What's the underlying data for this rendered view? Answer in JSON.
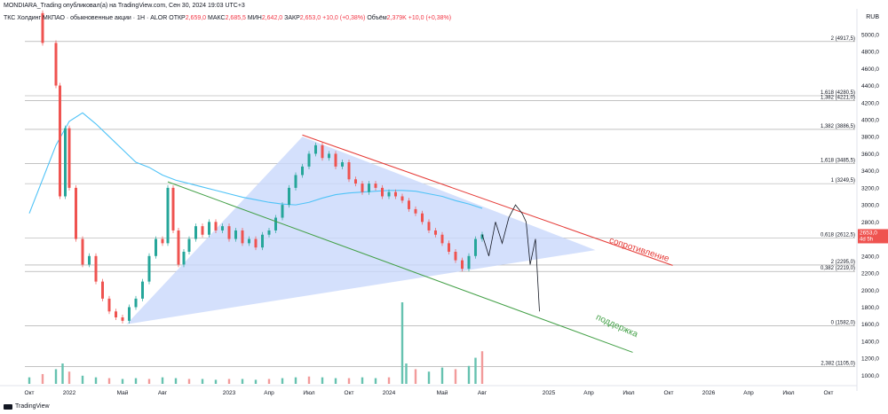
{
  "header": {
    "publisher": "MONDIARA_Trading опубликовал(а) на TradingView.com, Сен 30, 2024 19:03 UTC+3"
  },
  "symbol_line": {
    "name": "ТКС Холдинг МКПАО · обыкновенные акции · 1Н · ALOR",
    "open_label": "ОТКР",
    "open": "2,659,0",
    "high_label": "МАКС",
    "high": "2,685,5",
    "low_label": "МИН",
    "low": "2,642,0",
    "close_label": "ЗАКР",
    "close": "2,653,0",
    "change": "+10,0 (+0,38%)",
    "volume_label": "Объём",
    "volume": "2,379K",
    "volume_change": "+10,0 (+0,38%)"
  },
  "currency": "RUB",
  "footer": {
    "brand": "TradingView"
  },
  "colors": {
    "up": "#26a69a",
    "down": "#ef5350",
    "ma": "#4fc3f7",
    "triangle": "#c9d8fb",
    "resistance": "#e53935",
    "support": "#43a047",
    "volume_green": "#66c2b0",
    "volume_red": "#f29b9b"
  },
  "chart_data": {
    "type": "line",
    "y_axis": {
      "min": 900,
      "max": 5300,
      "ticks": [
        1000,
        1200,
        1400,
        1600,
        1800,
        2000,
        2200,
        2400,
        2600,
        2800,
        3000,
        3200,
        3400,
        3600,
        3800,
        4000,
        4200,
        4400,
        4600,
        4800,
        5000
      ],
      "tick_labels": [
        "1000,0",
        "1200,0",
        "1400,0",
        "1600,0",
        "1800,0",
        "2000,0",
        "2200,0",
        "2400,0",
        "2600,0",
        "2800,0",
        "3000,0",
        "3200,0",
        "3400,0",
        "3600,0",
        "3800,0",
        "4000,0",
        "4200,0",
        "4400,0",
        "4600,0",
        "4800,0",
        "5000,0"
      ]
    },
    "x_axis": {
      "ticks": [
        "Окт",
        "2022",
        "Май",
        "Авг",
        "2023",
        "Апр",
        "Июл",
        "Окт",
        "2024",
        "Май",
        "Авг",
        "2025",
        "Апр",
        "Июл",
        "Окт",
        "2026",
        "Апр",
        "Июл",
        "Окт",
        "2027",
        "Апр"
      ],
      "tick_months": [
        0,
        3,
        7,
        10,
        15,
        18,
        21,
        24,
        27,
        31,
        34,
        39,
        42,
        45,
        48,
        51,
        54,
        57,
        60,
        63,
        66
      ]
    },
    "last_price": {
      "value": 2653.0,
      "label": "2653,0",
      "sublabel": "4d 5h"
    },
    "fib_levels": [
      {
        "label": "2 (4917,5)",
        "value": 4917.5
      },
      {
        "label": "1,618 (4280,5)",
        "value": 4280.5
      },
      {
        "label": "1,382 (4221,0)",
        "value": 4221.0
      },
      {
        "label": "1,382 (3886,5)",
        "value": 3886.5
      },
      {
        "label": "1,618 (3485,5)",
        "value": 3485.5
      },
      {
        "label": "1 (3249,5)",
        "value": 3249.5
      },
      {
        "label": "0,618 (2612,5)",
        "value": 2612.5
      },
      {
        "label": "2 (2295,0)",
        "value": 2295.0
      },
      {
        "label": "0,382 (2219,0)",
        "value": 2219.0
      },
      {
        "label": "0 (1582,0)",
        "value": 1582.0
      },
      {
        "label": "2,382 (1105,0)",
        "value": 1105.0
      }
    ],
    "annotations": [
      {
        "text": "сопротивление",
        "kind": "resistance"
      },
      {
        "text": "поддержка",
        "kind": "support"
      }
    ],
    "ma_series": [
      [
        0,
        2900
      ],
      [
        1,
        3300
      ],
      [
        2,
        3700
      ],
      [
        3,
        3980
      ],
      [
        4,
        4080
      ],
      [
        5,
        3950
      ],
      [
        6,
        3800
      ],
      [
        7,
        3650
      ],
      [
        8,
        3500
      ],
      [
        9,
        3440
      ],
      [
        10,
        3350
      ],
      [
        11,
        3290
      ],
      [
        12,
        3250
      ],
      [
        13,
        3210
      ],
      [
        14,
        3170
      ],
      [
        15,
        3130
      ],
      [
        16,
        3090
      ],
      [
        17,
        3060
      ],
      [
        18,
        3030
      ],
      [
        19,
        3010
      ],
      [
        20,
        3000
      ],
      [
        21,
        3030
      ],
      [
        22,
        3080
      ],
      [
        23,
        3120
      ],
      [
        24,
        3140
      ],
      [
        25,
        3150
      ],
      [
        26,
        3160
      ],
      [
        27,
        3170
      ],
      [
        28,
        3170
      ],
      [
        29,
        3160
      ],
      [
        30,
        3130
      ],
      [
        31,
        3100
      ],
      [
        32,
        3050
      ],
      [
        33,
        3010
      ],
      [
        34,
        2960
      ]
    ],
    "price_series": [
      [
        0,
        5250
      ],
      [
        1,
        4900
      ],
      [
        2,
        4400
      ],
      [
        2.3,
        3100
      ],
      [
        2.7,
        3900
      ],
      [
        3,
        3200
      ],
      [
        3.5,
        2600
      ],
      [
        4,
        2300
      ],
      [
        4.5,
        2400
      ],
      [
        5,
        2100
      ],
      [
        5.5,
        1900
      ],
      [
        6,
        1750
      ],
      [
        6.5,
        1680
      ],
      [
        7,
        1640
      ],
      [
        7.5,
        1800
      ],
      [
        8,
        1900
      ],
      [
        8.5,
        2100
      ],
      [
        9,
        2400
      ],
      [
        9.5,
        2600
      ],
      [
        10,
        2550
      ],
      [
        10.4,
        3200
      ],
      [
        10.8,
        2700
      ],
      [
        11.2,
        2300
      ],
      [
        11.6,
        2450
      ],
      [
        12,
        2600
      ],
      [
        12.5,
        2750
      ],
      [
        13,
        2650
      ],
      [
        13.5,
        2800
      ],
      [
        14,
        2700
      ],
      [
        14.5,
        2750
      ],
      [
        15,
        2600
      ],
      [
        15.5,
        2700
      ],
      [
        16,
        2550
      ],
      [
        16.5,
        2600
      ],
      [
        17,
        2500
      ],
      [
        17.5,
        2650
      ],
      [
        18,
        2700
      ],
      [
        18.5,
        2850
      ],
      [
        19,
        3000
      ],
      [
        19.5,
        3200
      ],
      [
        20,
        3350
      ],
      [
        20.5,
        3450
      ],
      [
        21,
        3600
      ],
      [
        21.5,
        3700
      ],
      [
        22,
        3550
      ],
      [
        22.5,
        3600
      ],
      [
        23,
        3450
      ],
      [
        23.5,
        3500
      ],
      [
        24,
        3300
      ],
      [
        24.5,
        3250
      ],
      [
        25,
        3150
      ],
      [
        25.5,
        3250
      ],
      [
        26,
        3200
      ],
      [
        26.5,
        3100
      ],
      [
        27,
        3150
      ],
      [
        27.5,
        3100
      ],
      [
        28,
        3050
      ],
      [
        28.5,
        2950
      ],
      [
        29,
        2900
      ],
      [
        29.5,
        2800
      ],
      [
        30,
        2700
      ],
      [
        30.5,
        2650
      ],
      [
        31,
        2550
      ],
      [
        31.5,
        2450
      ],
      [
        32,
        2350
      ],
      [
        32.5,
        2250
      ],
      [
        33,
        2400
      ],
      [
        33.5,
        2600
      ],
      [
        34,
        2653
      ]
    ],
    "volumes": [
      [
        0,
        0.08
      ],
      [
        1,
        0.12
      ],
      [
        2,
        0.18
      ],
      [
        2.5,
        0.25
      ],
      [
        3,
        0.15
      ],
      [
        4,
        0.1
      ],
      [
        5,
        0.08
      ],
      [
        6,
        0.07
      ],
      [
        7,
        0.06
      ],
      [
        8,
        0.07
      ],
      [
        9,
        0.06
      ],
      [
        10,
        0.08
      ],
      [
        11,
        0.07
      ],
      [
        12,
        0.06
      ],
      [
        13,
        0.06
      ],
      [
        14,
        0.05
      ],
      [
        15,
        0.06
      ],
      [
        16,
        0.06
      ],
      [
        17,
        0.05
      ],
      [
        18,
        0.06
      ],
      [
        19,
        0.07
      ],
      [
        20,
        0.08
      ],
      [
        21,
        0.09
      ],
      [
        22,
        0.08
      ],
      [
        23,
        0.07
      ],
      [
        24,
        0.07
      ],
      [
        25,
        0.08
      ],
      [
        26,
        0.07
      ],
      [
        27,
        0.08
      ],
      [
        28,
        1.0
      ],
      [
        28.3,
        0.25
      ],
      [
        29,
        0.18
      ],
      [
        30,
        0.15
      ],
      [
        31,
        0.2
      ],
      [
        32,
        0.18
      ],
      [
        33,
        0.22
      ],
      [
        33.5,
        0.32
      ],
      [
        34,
        0.4
      ]
    ],
    "projection": [
      [
        34,
        2653
      ],
      [
        34.5,
        2400
      ],
      [
        35,
        2800
      ],
      [
        35.5,
        2550
      ],
      [
        36,
        2850
      ],
      [
        36.5,
        3000
      ],
      [
        37,
        2900
      ],
      [
        37.3,
        2800
      ],
      [
        37.6,
        2300
      ],
      [
        38,
        2600
      ],
      [
        38.3,
        1750
      ]
    ]
  }
}
